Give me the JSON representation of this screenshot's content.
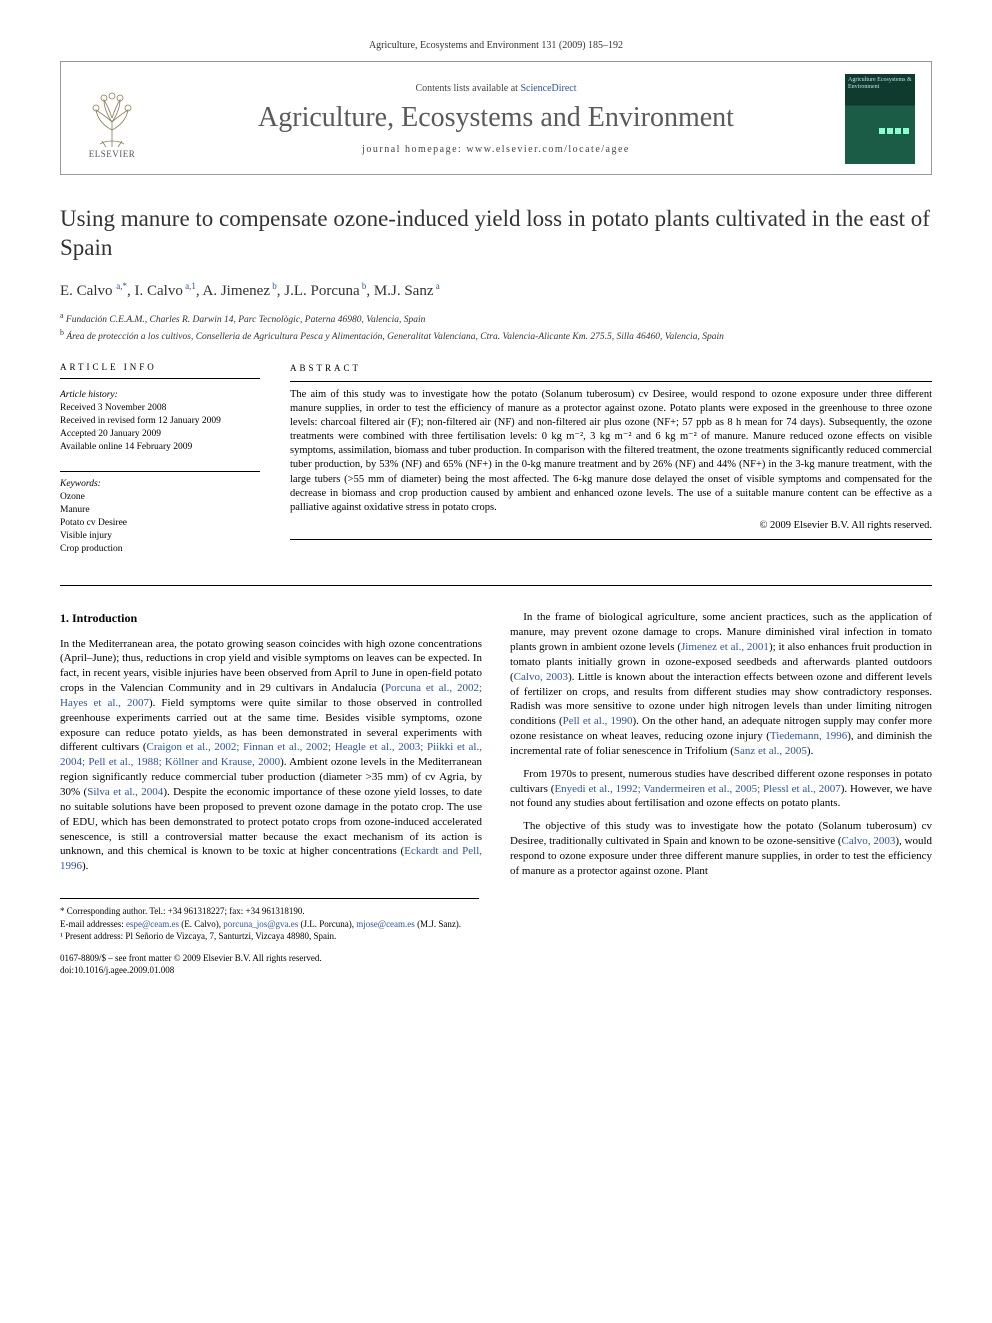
{
  "runningHead": "Agriculture, Ecosystems and Environment 131 (2009) 185–192",
  "masthead": {
    "contentsPrefix": "Contents lists available at ",
    "contentsLink": "ScienceDirect",
    "journalTitle": "Agriculture, Ecosystems and Environment",
    "homepagePrefix": "journal homepage: ",
    "homepage": "www.elsevier.com/locate/agee",
    "elsevierLabel": "ELSEVIER",
    "coverTitle": "Agriculture Ecosystems & Environment"
  },
  "article": {
    "title": "Using manure to compensate ozone-induced yield loss in potato plants cultivated in the east of Spain",
    "authorsHtml": "E. Calvo <sup>a,*</sup>, I. Calvo<sup> a,1</sup>, A. Jimenez<sup> b</sup>, J.L. Porcuna<sup> b</sup>, M.J. Sanz<sup> a</sup>",
    "affiliations": {
      "a": "Fundación C.E.A.M., Charles R. Darwin 14, Parc Tecnològic, Paterna 46980, Valencia, Spain",
      "b": "Área de protección a los cultivos, Conselleria de Agricultura Pesca y Alimentación, Generalitat Valenciana, Ctra. Valencia-Alicante Km. 275.5, Silla 46460, Valencia, Spain"
    }
  },
  "infoHead": "ARTICLE INFO",
  "abstractHead": "ABSTRACT",
  "history": {
    "heading": "Article history:",
    "received": "Received 3 November 2008",
    "revised": "Received in revised form 12 January 2009",
    "accepted": "Accepted 20 January 2009",
    "online": "Available online 14 February 2009"
  },
  "keywords": {
    "heading": "Keywords:",
    "items": [
      "Ozone",
      "Manure",
      "Potato cv Desiree",
      "Visible injury",
      "Crop production"
    ]
  },
  "abstract": {
    "text": "The aim of this study was to investigate how the potato (Solanum tuberosum) cv Desiree, would respond to ozone exposure under three different manure supplies, in order to test the efficiency of manure as a protector against ozone. Potato plants were exposed in the greenhouse to three ozone levels: charcoal filtered air (F); non-filtered air (NF) and non-filtered air plus ozone (NF+; 57 ppb as 8 h mean for 74 days). Subsequently, the ozone treatments were combined with three fertilisation levels: 0 kg m⁻², 3 kg m⁻² and 6 kg m⁻² of manure. Manure reduced ozone effects on visible symptoms, assimilation, biomass and tuber production. In comparison with the filtered treatment, the ozone treatments significantly reduced commercial tuber production, by 53% (NF) and 65% (NF+) in the 0-kg manure treatment and by 26% (NF) and 44% (NF+) in the 3-kg manure treatment, with the large tubers (>55 mm of diameter) being the most affected. The 6-kg manure dose delayed the onset of visible symptoms and compensated for the decrease in biomass and crop production caused by ambient and enhanced ozone levels. The use of a suitable manure content can be effective as a palliative against oxidative stress in potato crops.",
    "copyright": "© 2009 Elsevier B.V. All rights reserved."
  },
  "section1": {
    "heading": "1. Introduction",
    "p1a": "In the Mediterranean area, the potato growing season coincides with high ozone concentrations (April–June); thus, reductions in crop yield and visible symptoms on leaves can be expected. In fact, in recent years, visible injuries have been observed from April to June in open-field potato crops in the Valencian Community and in 29 cultivars in Andalucia (",
    "p1ref1": "Porcuna et al., 2002; Hayes et al., 2007",
    "p1b": "). Field symptoms were quite similar to those observed in controlled greenhouse experiments carried out at the same time. Besides visible symptoms, ozone exposure can reduce potato yields, as has been demonstrated in several experiments with different cultivars (",
    "p1ref2": "Craigon et al., 2002; Finnan et al., 2002; Heagle et al., 2003; Piikki et al., 2004; Pell et al., 1988; Köllner and Krause, 2000",
    "p1c": "). Ambient ozone levels in the Mediterranean region significantly reduce commercial tuber production (diameter >35 mm) of cv Agria, by 30% (",
    "p1ref3": "Silva et al., 2004",
    "p1d": "). Despite the economic importance of these ozone yield losses, to date no suitable solutions have been proposed to prevent ozone damage in the potato crop. The use of EDU, which has been demonstrated to protect potato crops from ozone-induced accelerated senescence, is still a controversial ",
    "p1e": "matter because the exact mechanism of its action is unknown, and this chemical is known to be toxic at higher concentrations (",
    "p1ref4": "Eckardt and Pell, 1996",
    "p1f": ").",
    "p2a": "In the frame of biological agriculture, some ancient practices, such as the application of manure, may prevent ozone damage to crops. Manure diminished viral infection in tomato plants grown in ambient ozone levels (",
    "p2ref1": "Jimenez et al., 2001",
    "p2b": "); it also enhances fruit production in tomato plants initially grown in ozone-exposed seedbeds and afterwards planted outdoors (",
    "p2ref2": "Calvo, 2003",
    "p2c": "). Little is known about the interaction effects between ozone and different levels of fertilizer on crops, and results from different studies may show contradictory responses. Radish was more sensitive to ozone under high nitrogen levels than under limiting nitrogen conditions (",
    "p2ref3": "Pell et al., 1990",
    "p2d": "). On the other hand, an adequate nitrogen supply may confer more ozone resistance on wheat leaves, reducing ozone injury (",
    "p2ref4": "Tiedemann, 1996",
    "p2e": "), and diminish the incremental rate of foliar senescence in Trifolium (",
    "p2ref5": "Sanz et al., 2005",
    "p2f": ").",
    "p3a": "From 1970s to present, numerous studies have described different ozone responses in potato cultivars (",
    "p3ref1": "Enyedi et al., 1992; Vandermeiren et al., 2005; Plessl et al., 2007",
    "p3b": "). However, we have not found any studies about fertilisation and ozone effects on potato plants.",
    "p4a": "The objective of this study was to investigate how the potato (Solanum tuberosum) cv Desiree, traditionally cultivated in Spain and known to be ozone-sensitive (",
    "p4ref1": "Calvo, 2003",
    "p4b": "), would respond to ozone exposure under three different manure supplies, in order to test the efficiency of manure as a protector against ozone. Plant"
  },
  "footnotes": {
    "corrLabel": "* Corresponding author. Tel.: +34 961318227; fax: +34 961318190.",
    "emailLabel": "E-mail addresses: ",
    "email1": "espe@ceam.es",
    "email1who": " (E. Calvo), ",
    "email2": "porcuna_jos@gva.es",
    "email2who": " (J.L. Porcuna), ",
    "email3": "mjose@ceam.es",
    "email3who": " (M.J. Sanz).",
    "note1": "¹ Present address: Pl Señorio de Vizcaya, 7, Santurtzi, Vizcaya 48980, Spain."
  },
  "footer": {
    "line1": "0167-8809/$ – see front matter © 2009 Elsevier B.V. All rights reserved.",
    "line2": "doi:10.1016/j.agee.2009.01.008"
  },
  "colors": {
    "link": "#2a55a4",
    "text": "#000000",
    "titleGray": "#5a5a5a",
    "border": "#999999"
  }
}
